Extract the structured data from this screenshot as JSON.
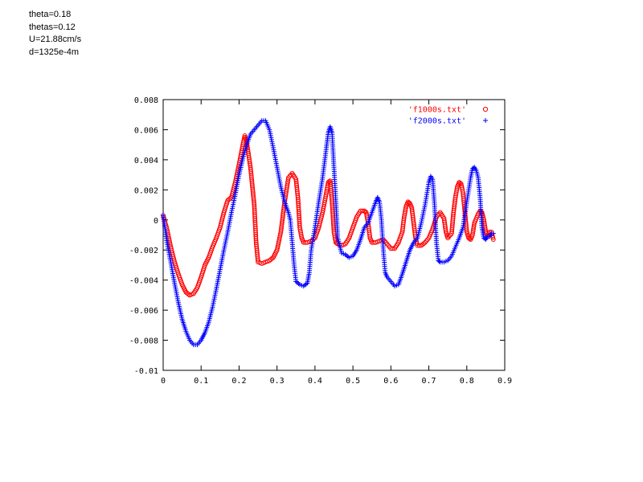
{
  "annotations": [
    "theta=0.18",
    "thetas=0.12",
    "U=21.88cm/s",
    "d=1325e-4m"
  ],
  "chart_data": {
    "type": "scatter",
    "title": "",
    "xlabel": "",
    "ylabel": "",
    "xlim": [
      0,
      0.9
    ],
    "ylim": [
      -0.01,
      0.008
    ],
    "x_ticks": [
      0,
      0.1,
      0.2,
      0.3,
      0.4,
      0.5,
      0.6,
      0.7,
      0.8,
      0.9
    ],
    "x_tick_labels": [
      "0",
      "0.1",
      "0.2",
      "0.3",
      "0.4",
      "0.5",
      "0.6",
      "0.7",
      "0.8",
      "0.9"
    ],
    "y_ticks": [
      0.008,
      0.006,
      0.004,
      0.002,
      0,
      -0.002,
      -0.004,
      -0.006,
      -0.008,
      -0.01
    ],
    "y_tick_labels": [
      "0.008",
      "0.006",
      "0.004",
      "0.002",
      "0",
      "-0.002",
      "-0.004",
      "-0.006",
      "-0.008",
      "-0.01"
    ],
    "grid": false,
    "legend_position": "top-right",
    "series": [
      {
        "name": "'f1000s.txt'",
        "color": "#ff0000",
        "marker": "circle",
        "points": [
          [
            0.0,
            0.0003
          ],
          [
            0.01,
            -0.0006
          ],
          [
            0.02,
            -0.0018
          ],
          [
            0.03,
            -0.0028
          ],
          [
            0.04,
            -0.0036
          ],
          [
            0.05,
            -0.0043
          ],
          [
            0.06,
            -0.0048
          ],
          [
            0.07,
            -0.005
          ],
          [
            0.08,
            -0.0049
          ],
          [
            0.09,
            -0.0045
          ],
          [
            0.1,
            -0.0038
          ],
          [
            0.11,
            -0.003
          ],
          [
            0.12,
            -0.0025
          ],
          [
            0.13,
            -0.0018
          ],
          [
            0.14,
            -0.0012
          ],
          [
            0.15,
            -0.0005
          ],
          [
            0.16,
            0.0005
          ],
          [
            0.17,
            0.0013
          ],
          [
            0.18,
            0.0015
          ],
          [
            0.19,
            0.0025
          ],
          [
            0.2,
            0.0037
          ],
          [
            0.21,
            0.005
          ],
          [
            0.215,
            0.0056
          ],
          [
            0.22,
            0.0052
          ],
          [
            0.23,
            0.0035
          ],
          [
            0.24,
            0.001
          ],
          [
            0.245,
            -0.0015
          ],
          [
            0.25,
            -0.0028
          ],
          [
            0.26,
            -0.0029
          ],
          [
            0.27,
            -0.0028
          ],
          [
            0.28,
            -0.0027
          ],
          [
            0.29,
            -0.0025
          ],
          [
            0.3,
            -0.002
          ],
          [
            0.31,
            -0.0008
          ],
          [
            0.32,
            0.0012
          ],
          [
            0.33,
            0.0028
          ],
          [
            0.34,
            0.0031
          ],
          [
            0.35,
            0.0027
          ],
          [
            0.355,
            0.0015
          ],
          [
            0.36,
            -0.0005
          ],
          [
            0.365,
            -0.0012
          ],
          [
            0.37,
            -0.0015
          ],
          [
            0.38,
            -0.0015
          ],
          [
            0.39,
            -0.0014
          ],
          [
            0.4,
            -0.0012
          ],
          [
            0.41,
            -0.0005
          ],
          [
            0.42,
            0.0005
          ],
          [
            0.43,
            0.0018
          ],
          [
            0.435,
            0.0025
          ],
          [
            0.44,
            0.0026
          ],
          [
            0.445,
            0.0012
          ],
          [
            0.45,
            -0.0008
          ],
          [
            0.455,
            -0.0015
          ],
          [
            0.46,
            -0.0016
          ],
          [
            0.47,
            -0.0017
          ],
          [
            0.48,
            -0.0016
          ],
          [
            0.49,
            -0.0012
          ],
          [
            0.5,
            -0.0005
          ],
          [
            0.51,
            0.0002
          ],
          [
            0.52,
            0.0006
          ],
          [
            0.53,
            0.0006
          ],
          [
            0.535,
            0.0005
          ],
          [
            0.54,
            -0.0002
          ],
          [
            0.545,
            -0.0012
          ],
          [
            0.55,
            -0.0015
          ],
          [
            0.56,
            -0.0015
          ],
          [
            0.57,
            -0.0014
          ],
          [
            0.58,
            -0.0013
          ],
          [
            0.59,
            -0.0016
          ],
          [
            0.6,
            -0.0019
          ],
          [
            0.61,
            -0.0019
          ],
          [
            0.62,
            -0.0015
          ],
          [
            0.63,
            -0.0008
          ],
          [
            0.635,
            0.0002
          ],
          [
            0.64,
            0.0009
          ],
          [
            0.645,
            0.0012
          ],
          [
            0.65,
            0.0011
          ],
          [
            0.655,
            0.0008
          ],
          [
            0.66,
            -0.0002
          ],
          [
            0.665,
            -0.0012
          ],
          [
            0.67,
            -0.0017
          ],
          [
            0.68,
            -0.0017
          ],
          [
            0.69,
            -0.0015
          ],
          [
            0.7,
            -0.0012
          ],
          [
            0.71,
            -0.0006
          ],
          [
            0.72,
            0.0002
          ],
          [
            0.73,
            0.0005
          ],
          [
            0.74,
            0.0001
          ],
          [
            0.745,
            -0.0008
          ],
          [
            0.75,
            -0.0012
          ],
          [
            0.76,
            -0.0009
          ],
          [
            0.765,
            0.0005
          ],
          [
            0.77,
            0.0015
          ],
          [
            0.775,
            0.0022
          ],
          [
            0.78,
            0.0025
          ],
          [
            0.785,
            0.0024
          ],
          [
            0.79,
            0.0018
          ],
          [
            0.795,
            0.0005
          ],
          [
            0.8,
            -0.0008
          ],
          [
            0.805,
            -0.0012
          ],
          [
            0.81,
            -0.0013
          ],
          [
            0.815,
            -0.001
          ],
          [
            0.82,
            -0.0002
          ],
          [
            0.83,
            0.0004
          ],
          [
            0.835,
            0.0006
          ],
          [
            0.84,
            0.0005
          ],
          [
            0.845,
            0.0
          ],
          [
            0.85,
            -0.0008
          ],
          [
            0.855,
            -0.0011
          ],
          [
            0.86,
            -0.0008
          ],
          [
            0.865,
            -0.0008
          ],
          [
            0.87,
            -0.0013
          ]
        ]
      },
      {
        "name": "'f2000s.txt'",
        "color": "#0000ff",
        "marker": "plus",
        "points": [
          [
            0.0,
            0.0003
          ],
          [
            0.01,
            -0.0015
          ],
          [
            0.02,
            -0.0028
          ],
          [
            0.03,
            -0.0042
          ],
          [
            0.04,
            -0.0055
          ],
          [
            0.05,
            -0.0066
          ],
          [
            0.06,
            -0.0074
          ],
          [
            0.07,
            -0.008
          ],
          [
            0.08,
            -0.0083
          ],
          [
            0.09,
            -0.0083
          ],
          [
            0.1,
            -0.008
          ],
          [
            0.11,
            -0.0075
          ],
          [
            0.12,
            -0.0068
          ],
          [
            0.13,
            -0.0058
          ],
          [
            0.14,
            -0.0046
          ],
          [
            0.15,
            -0.0033
          ],
          [
            0.16,
            -0.002
          ],
          [
            0.17,
            -0.0008
          ],
          [
            0.18,
            0.0005
          ],
          [
            0.19,
            0.0017
          ],
          [
            0.2,
            0.003
          ],
          [
            0.21,
            0.0041
          ],
          [
            0.22,
            0.005
          ],
          [
            0.23,
            0.0057
          ],
          [
            0.24,
            0.006
          ],
          [
            0.25,
            0.0063
          ],
          [
            0.26,
            0.0066
          ],
          [
            0.27,
            0.0066
          ],
          [
            0.28,
            0.006
          ],
          [
            0.29,
            0.0048
          ],
          [
            0.3,
            0.0035
          ],
          [
            0.31,
            0.0022
          ],
          [
            0.32,
            0.0012
          ],
          [
            0.33,
            0.0005
          ],
          [
            0.335,
            0.0
          ],
          [
            0.34,
            -0.0015
          ],
          [
            0.345,
            -0.003
          ],
          [
            0.35,
            -0.0041
          ],
          [
            0.36,
            -0.0043
          ],
          [
            0.37,
            -0.0044
          ],
          [
            0.38,
            -0.0042
          ],
          [
            0.385,
            -0.0035
          ],
          [
            0.39,
            -0.002
          ],
          [
            0.4,
            -0.0005
          ],
          [
            0.41,
            0.0012
          ],
          [
            0.42,
            0.0028
          ],
          [
            0.43,
            0.0048
          ],
          [
            0.435,
            0.0058
          ],
          [
            0.44,
            0.0062
          ],
          [
            0.445,
            0.0058
          ],
          [
            0.45,
            0.0035
          ],
          [
            0.455,
            0.0012
          ],
          [
            0.46,
            -0.0012
          ],
          [
            0.47,
            -0.0022
          ],
          [
            0.48,
            -0.0023
          ],
          [
            0.49,
            -0.0025
          ],
          [
            0.5,
            -0.0024
          ],
          [
            0.51,
            -0.002
          ],
          [
            0.52,
            -0.0013
          ],
          [
            0.53,
            -0.0005
          ],
          [
            0.54,
            -0.0002
          ],
          [
            0.55,
            0.0005
          ],
          [
            0.56,
            0.0012
          ],
          [
            0.565,
            0.0015
          ],
          [
            0.57,
            0.0012
          ],
          [
            0.575,
            0.0
          ],
          [
            0.58,
            -0.002
          ],
          [
            0.585,
            -0.0035
          ],
          [
            0.59,
            -0.0038
          ],
          [
            0.6,
            -0.0041
          ],
          [
            0.61,
            -0.0044
          ],
          [
            0.62,
            -0.0043
          ],
          [
            0.63,
            -0.0036
          ],
          [
            0.64,
            -0.0028
          ],
          [
            0.65,
            -0.002
          ],
          [
            0.66,
            -0.0015
          ],
          [
            0.67,
            -0.0012
          ],
          [
            0.68,
            -0.0002
          ],
          [
            0.69,
            0.001
          ],
          [
            0.7,
            0.0025
          ],
          [
            0.705,
            0.0029
          ],
          [
            0.71,
            0.0027
          ],
          [
            0.715,
            0.001
          ],
          [
            0.72,
            -0.0015
          ],
          [
            0.725,
            -0.0027
          ],
          [
            0.73,
            -0.0028
          ],
          [
            0.74,
            -0.0028
          ],
          [
            0.75,
            -0.0027
          ],
          [
            0.76,
            -0.0024
          ],
          [
            0.77,
            -0.0018
          ],
          [
            0.78,
            -0.0012
          ],
          [
            0.79,
            -0.0005
          ],
          [
            0.8,
            0.0012
          ],
          [
            0.81,
            0.0028
          ],
          [
            0.815,
            0.0034
          ],
          [
            0.82,
            0.0035
          ],
          [
            0.825,
            0.0033
          ],
          [
            0.83,
            0.0028
          ],
          [
            0.835,
            0.0015
          ],
          [
            0.84,
            -0.0005
          ],
          [
            0.845,
            -0.0012
          ],
          [
            0.85,
            -0.0013
          ],
          [
            0.855,
            -0.0011
          ],
          [
            0.86,
            -0.0011
          ],
          [
            0.865,
            -0.0009
          ],
          [
            0.87,
            -0.0009
          ]
        ]
      }
    ]
  }
}
